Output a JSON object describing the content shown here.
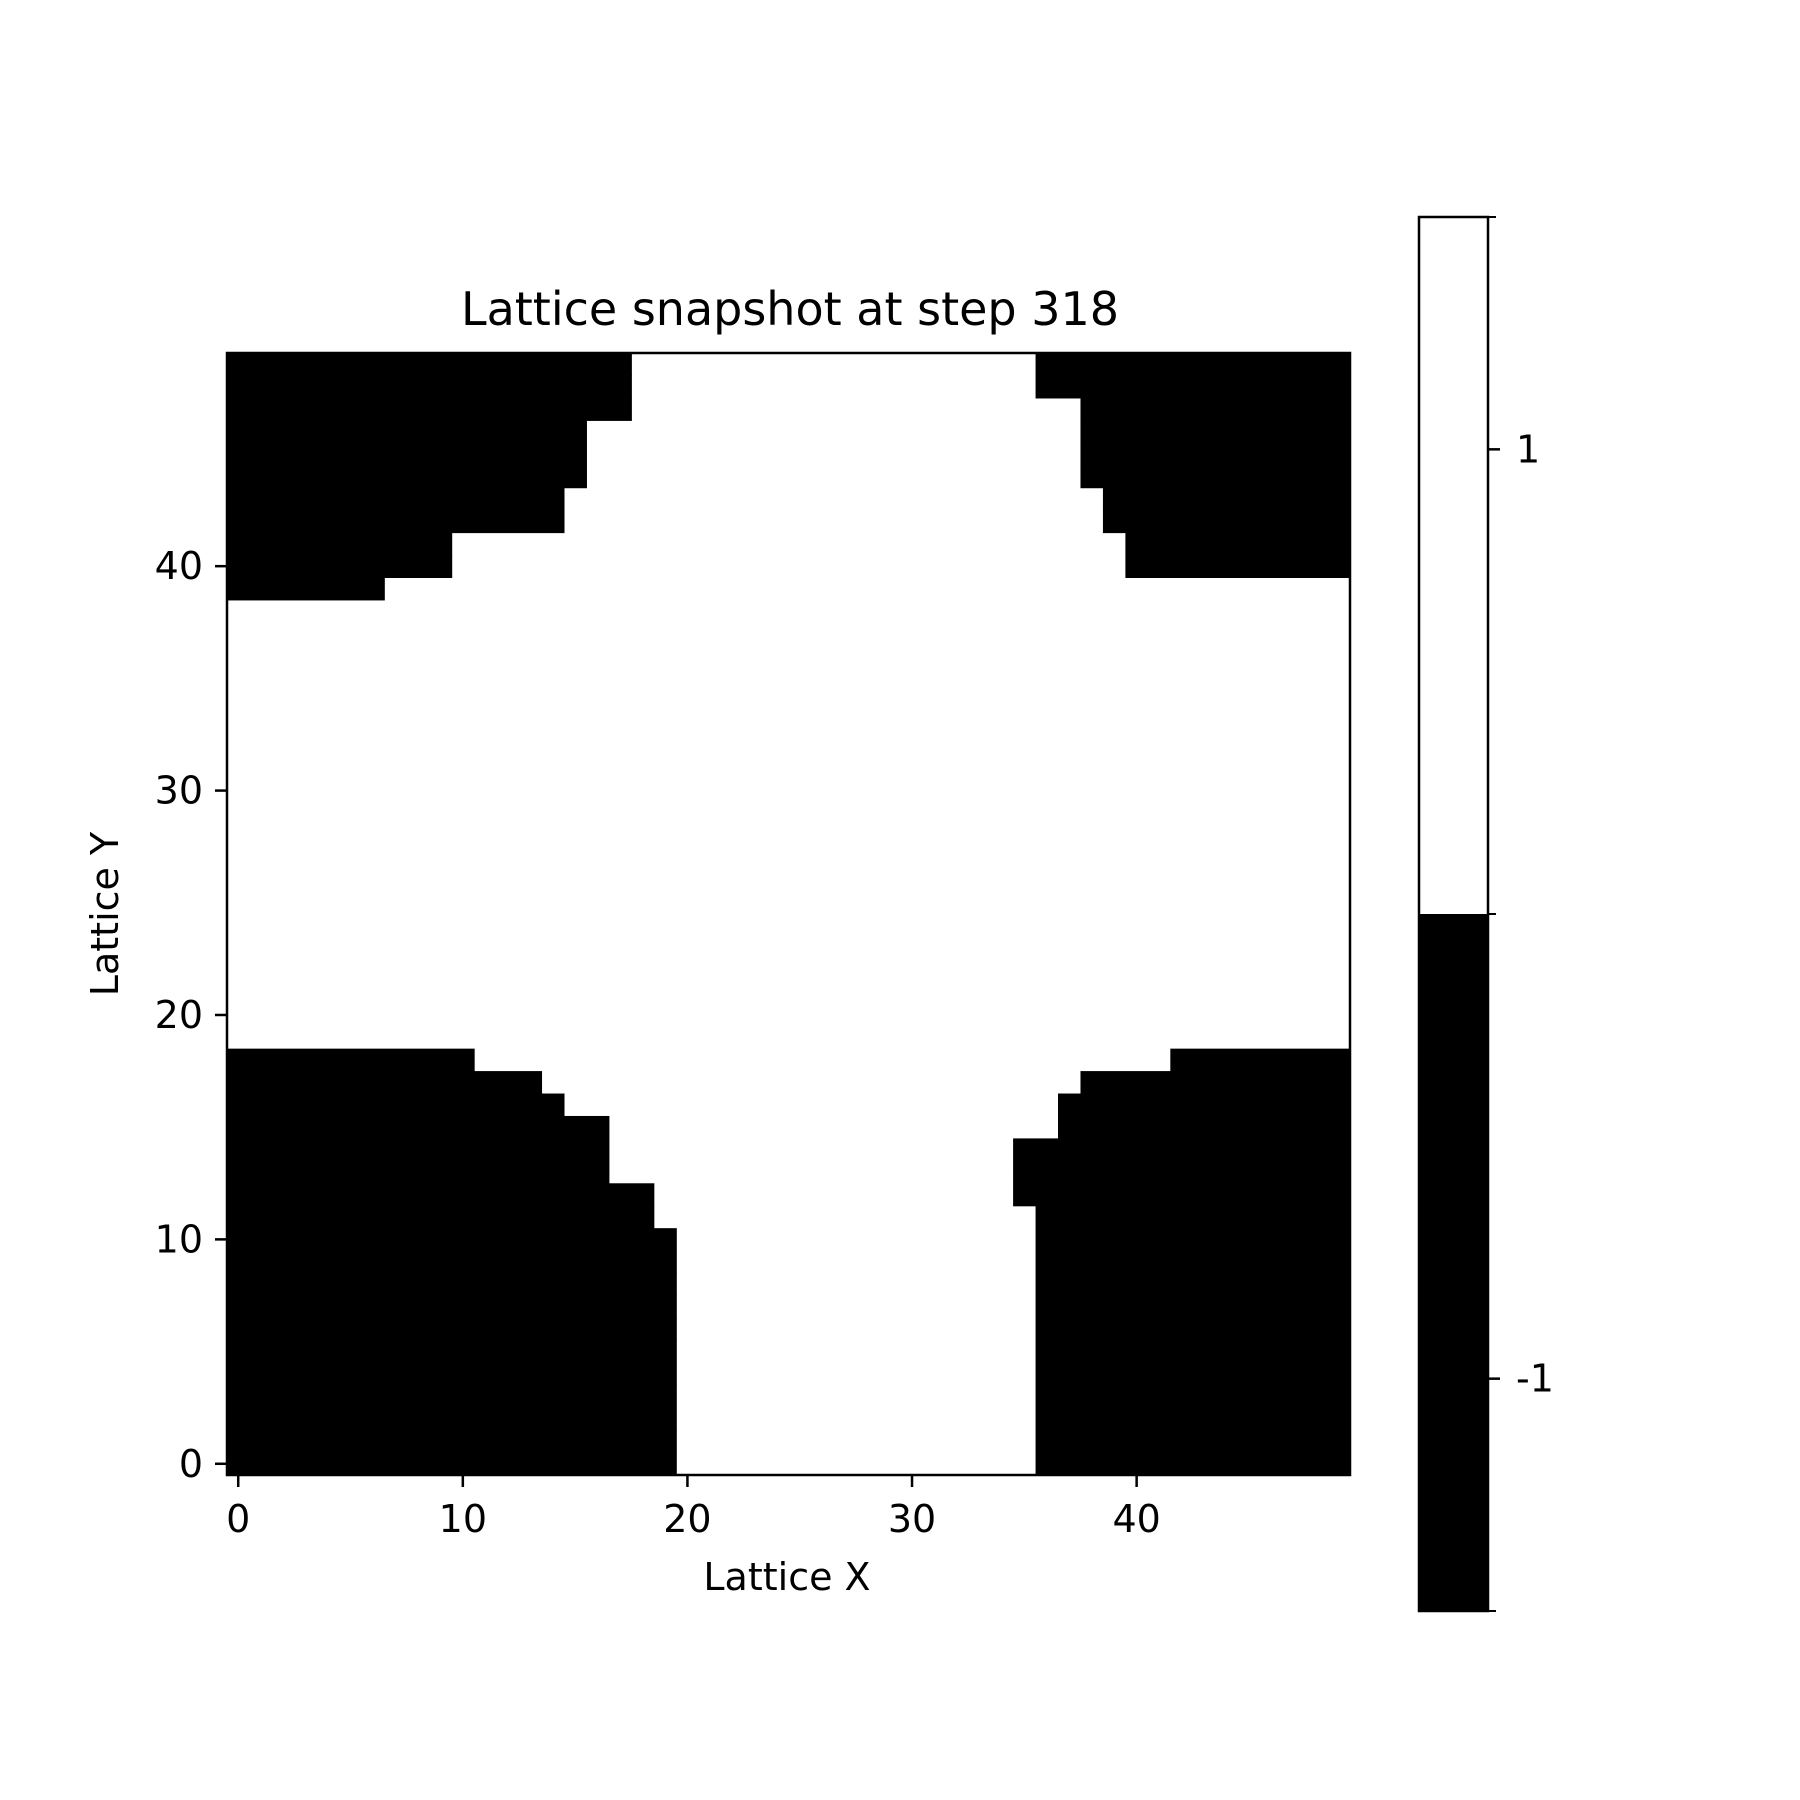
{
  "chart_data": {
    "type": "heatmap",
    "title": "Lattice snapshot at step 318",
    "xlabel": "Lattice X",
    "ylabel": "Lattice Y",
    "grid_size": [
      50,
      50
    ],
    "xlim": [
      -0.5,
      49.5
    ],
    "ylim": [
      -0.5,
      49.5
    ],
    "origin": "lower",
    "grid": false,
    "xticks": [
      0,
      10,
      20,
      30,
      40
    ],
    "yticks": [
      0,
      10,
      20,
      30,
      40
    ],
    "values_legend": [
      -1,
      1
    ],
    "colors": {
      "-1": "#000000",
      "1": "#ffffff"
    },
    "colorbar": {
      "ticks": [
        1,
        -1
      ],
      "range": [
        -1.5,
        1.5
      ],
      "placement": "right"
    },
    "spin_minus_one_columns_per_row": [
      {
        "y": 0,
        "x_ranges": [
          [
            0,
            19
          ],
          [
            36,
            49
          ]
        ]
      },
      {
        "y": 1,
        "x_ranges": [
          [
            0,
            19
          ],
          [
            36,
            49
          ]
        ]
      },
      {
        "y": 2,
        "x_ranges": [
          [
            0,
            19
          ],
          [
            36,
            49
          ]
        ]
      },
      {
        "y": 3,
        "x_ranges": [
          [
            0,
            19
          ],
          [
            36,
            49
          ]
        ]
      },
      {
        "y": 4,
        "x_ranges": [
          [
            0,
            19
          ],
          [
            36,
            49
          ]
        ]
      },
      {
        "y": 5,
        "x_ranges": [
          [
            0,
            19
          ],
          [
            36,
            49
          ]
        ]
      },
      {
        "y": 6,
        "x_ranges": [
          [
            0,
            19
          ],
          [
            36,
            49
          ]
        ]
      },
      {
        "y": 7,
        "x_ranges": [
          [
            0,
            19
          ],
          [
            36,
            49
          ]
        ]
      },
      {
        "y": 8,
        "x_ranges": [
          [
            0,
            19
          ],
          [
            36,
            49
          ]
        ]
      },
      {
        "y": 9,
        "x_ranges": [
          [
            0,
            19
          ],
          [
            36,
            49
          ]
        ]
      },
      {
        "y": 10,
        "x_ranges": [
          [
            0,
            19
          ],
          [
            36,
            49
          ]
        ]
      },
      {
        "y": 11,
        "x_ranges": [
          [
            0,
            18
          ],
          [
            36,
            49
          ]
        ]
      },
      {
        "y": 12,
        "x_ranges": [
          [
            0,
            18
          ],
          [
            35,
            49
          ]
        ]
      },
      {
        "y": 13,
        "x_ranges": [
          [
            0,
            16
          ],
          [
            35,
            49
          ]
        ]
      },
      {
        "y": 14,
        "x_ranges": [
          [
            0,
            16
          ],
          [
            35,
            49
          ]
        ]
      },
      {
        "y": 15,
        "x_ranges": [
          [
            0,
            16
          ],
          [
            37,
            49
          ]
        ]
      },
      {
        "y": 16,
        "x_ranges": [
          [
            0,
            14
          ],
          [
            37,
            49
          ]
        ]
      },
      {
        "y": 17,
        "x_ranges": [
          [
            0,
            13
          ],
          [
            38,
            49
          ]
        ]
      },
      {
        "y": 18,
        "x_ranges": [
          [
            0,
            10
          ],
          [
            42,
            49
          ]
        ]
      },
      {
        "y": 39,
        "x_ranges": [
          [
            0,
            6
          ]
        ]
      },
      {
        "y": 40,
        "x_ranges": [
          [
            0,
            9
          ],
          [
            40,
            49
          ]
        ]
      },
      {
        "y": 41,
        "x_ranges": [
          [
            0,
            9
          ],
          [
            40,
            49
          ]
        ]
      },
      {
        "y": 42,
        "x_ranges": [
          [
            0,
            14
          ],
          [
            39,
            49
          ]
        ]
      },
      {
        "y": 43,
        "x_ranges": [
          [
            0,
            14
          ],
          [
            39,
            49
          ]
        ]
      },
      {
        "y": 44,
        "x_ranges": [
          [
            0,
            15
          ],
          [
            38,
            49
          ]
        ]
      },
      {
        "y": 45,
        "x_ranges": [
          [
            0,
            15
          ],
          [
            38,
            49
          ]
        ]
      },
      {
        "y": 46,
        "x_ranges": [
          [
            0,
            15
          ],
          [
            38,
            49
          ]
        ]
      },
      {
        "y": 47,
        "x_ranges": [
          [
            0,
            17
          ],
          [
            38,
            49
          ]
        ]
      },
      {
        "y": 48,
        "x_ranges": [
          [
            0,
            17
          ],
          [
            36,
            49
          ]
        ]
      },
      {
        "y": 49,
        "x_ranges": [
          [
            0,
            17
          ],
          [
            36,
            49
          ]
        ]
      }
    ]
  }
}
